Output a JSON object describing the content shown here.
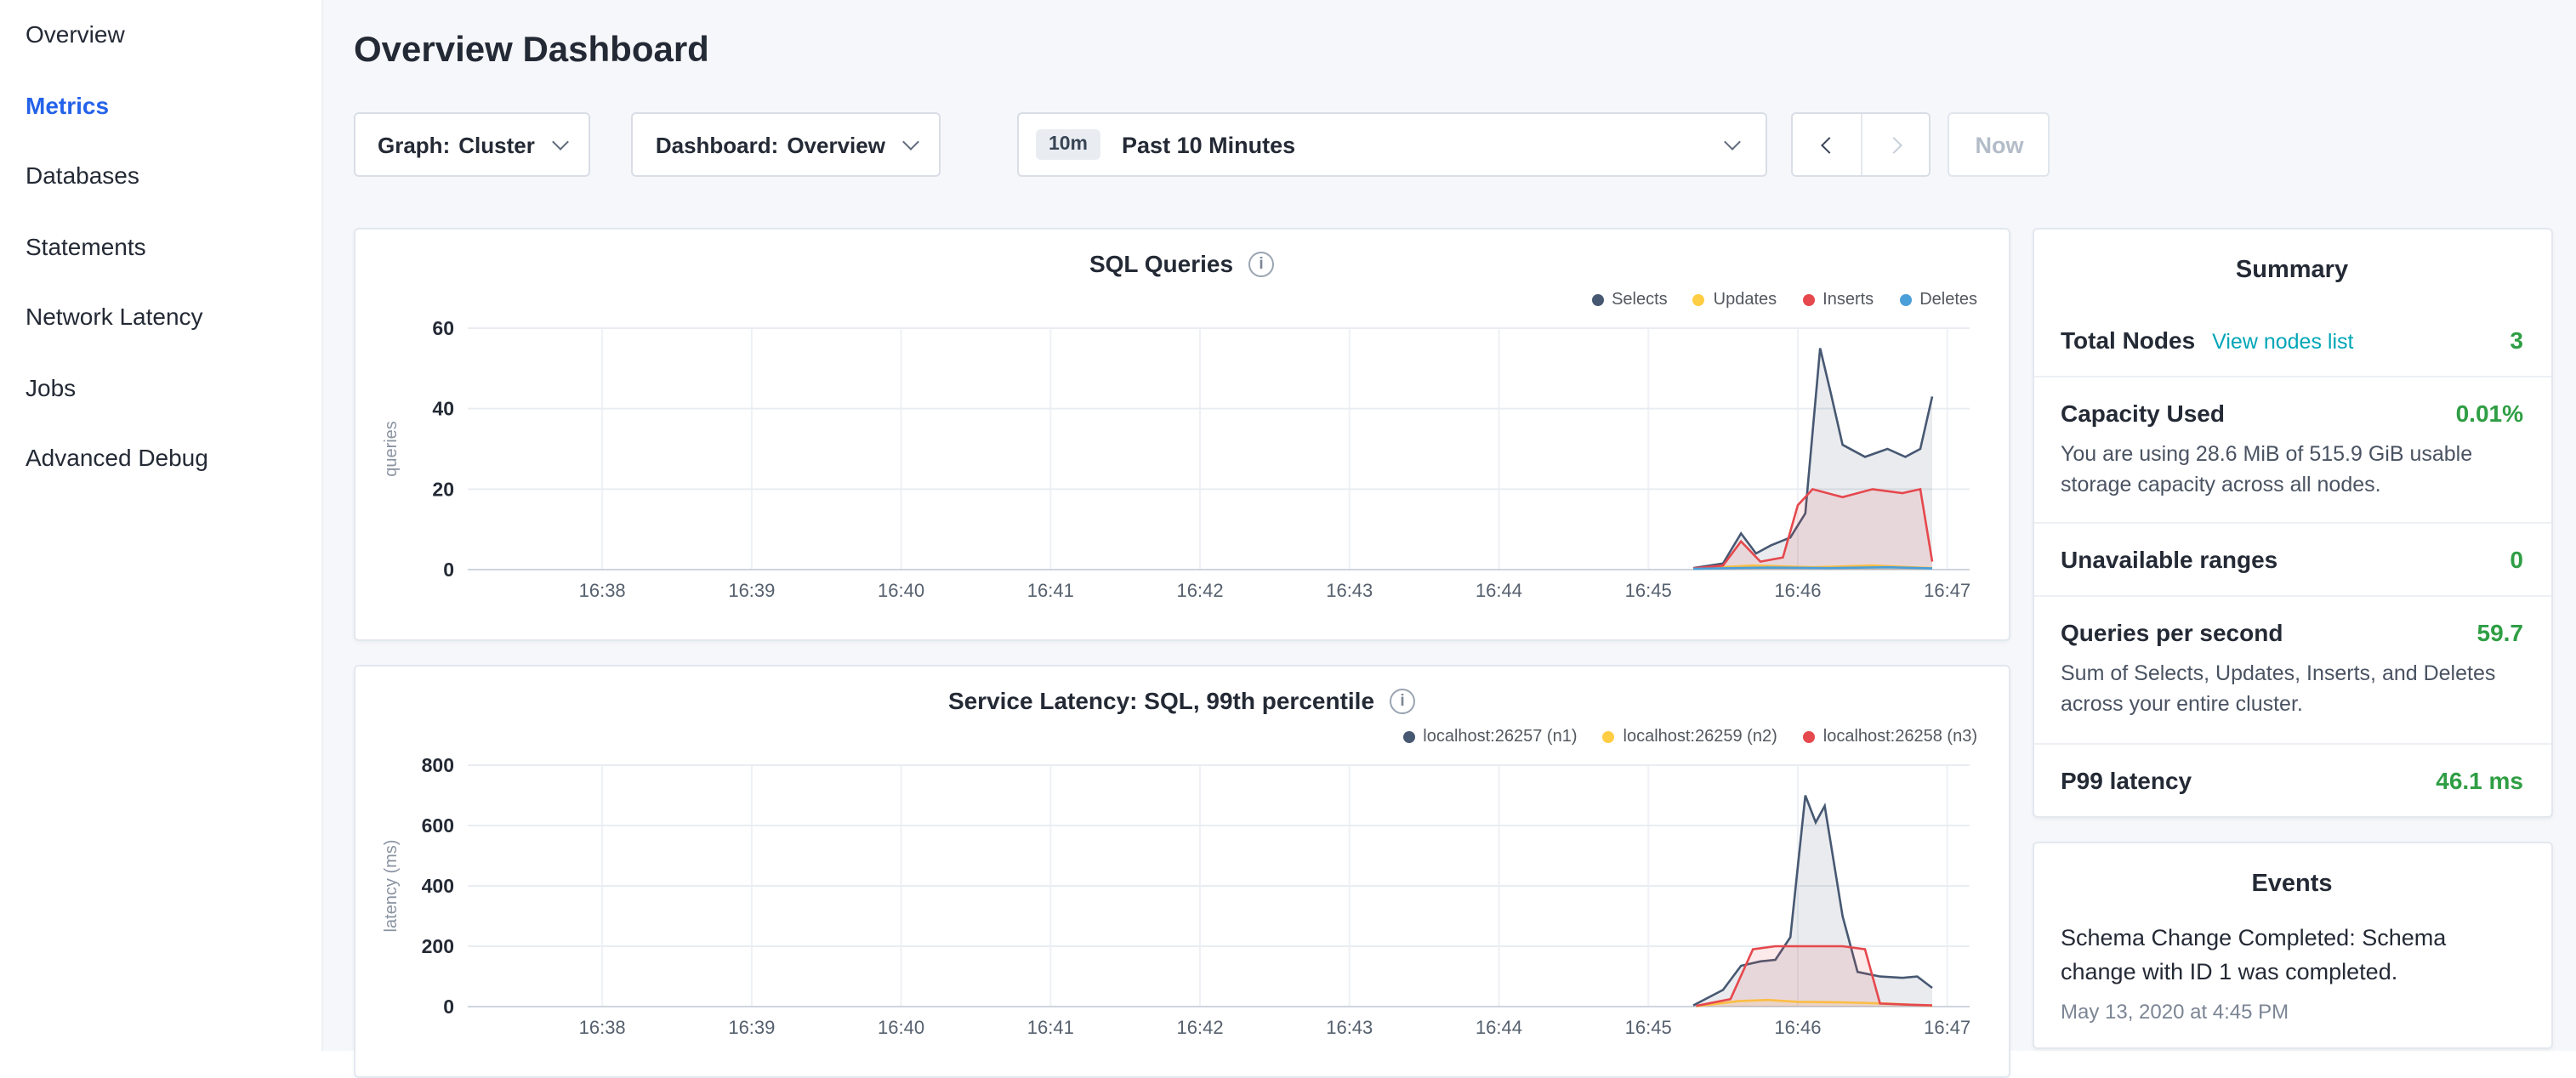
{
  "colors": {
    "accent_blue": "#2462ea",
    "value_green": "#2f9e44",
    "link_teal": "#00a6b8",
    "series_dark": "#475872",
    "series_yellow": "#ffcd44",
    "series_red": "#e5484d",
    "series_blue": "#4a9fd8"
  },
  "sidebar": {
    "items": [
      {
        "label": "Overview",
        "active": false
      },
      {
        "label": "Metrics",
        "active": true
      },
      {
        "label": "Databases",
        "active": false
      },
      {
        "label": "Statements",
        "active": false
      },
      {
        "label": "Network Latency",
        "active": false
      },
      {
        "label": "Jobs",
        "active": false
      },
      {
        "label": "Advanced Debug",
        "active": false
      }
    ]
  },
  "header": {
    "title": "Overview Dashboard",
    "graph_dropdown": {
      "label": "Graph:",
      "value": "Cluster"
    },
    "dashboard_dropdown": {
      "label": "Dashboard:",
      "value": "Overview"
    },
    "time": {
      "badge": "10m",
      "value": "Past 10 Minutes"
    },
    "now_label": "Now"
  },
  "chart_data": [
    {
      "type": "area",
      "title": "SQL Queries",
      "ylabel": "queries",
      "ymax": 60,
      "yticks": [
        0,
        20,
        40,
        60
      ],
      "xmin": 37.1,
      "xmax": 47.15,
      "grid": true,
      "legend_position": "top-right",
      "xticks": [
        {
          "v": 38,
          "label": "16:38"
        },
        {
          "v": 39,
          "label": "16:39"
        },
        {
          "v": 40,
          "label": "16:40"
        },
        {
          "v": 41,
          "label": "16:41"
        },
        {
          "v": 42,
          "label": "16:42"
        },
        {
          "v": 43,
          "label": "16:43"
        },
        {
          "v": 44,
          "label": "16:44"
        },
        {
          "v": 45,
          "label": "16:45"
        },
        {
          "v": 46,
          "label": "16:46"
        },
        {
          "v": 47,
          "label": "16:47"
        }
      ],
      "series": [
        {
          "name": "Selects",
          "color": "#475872",
          "points": [
            [
              45.3,
              0.4
            ],
            [
              45.5,
              1.5
            ],
            [
              45.62,
              9
            ],
            [
              45.72,
              4
            ],
            [
              45.82,
              6
            ],
            [
              45.95,
              8
            ],
            [
              46.05,
              14
            ],
            [
              46.15,
              55
            ],
            [
              46.22,
              44
            ],
            [
              46.3,
              31
            ],
            [
              46.45,
              28
            ],
            [
              46.6,
              30
            ],
            [
              46.72,
              28
            ],
            [
              46.82,
              30
            ],
            [
              46.9,
              43
            ]
          ]
        },
        {
          "name": "Updates",
          "color": "#ffcd44",
          "points": [
            [
              45.3,
              0.3
            ],
            [
              45.7,
              1
            ],
            [
              46.1,
              0.6
            ],
            [
              46.5,
              1
            ],
            [
              46.9,
              0.4
            ]
          ]
        },
        {
          "name": "Inserts",
          "color": "#e5484d",
          "points": [
            [
              45.3,
              0.3
            ],
            [
              45.5,
              1
            ],
            [
              45.62,
              7
            ],
            [
              45.75,
              2
            ],
            [
              45.9,
              3
            ],
            [
              46.0,
              16
            ],
            [
              46.1,
              20
            ],
            [
              46.3,
              18
            ],
            [
              46.5,
              20
            ],
            [
              46.7,
              19
            ],
            [
              46.82,
              20
            ],
            [
              46.9,
              2
            ]
          ]
        },
        {
          "name": "Deletes",
          "color": "#4a9fd8",
          "points": [
            [
              45.3,
              0.2
            ],
            [
              45.8,
              0.5
            ],
            [
              46.2,
              0.4
            ],
            [
              46.6,
              0.6
            ],
            [
              46.9,
              0.3
            ]
          ]
        }
      ]
    },
    {
      "type": "area",
      "title": "Service Latency: SQL, 99th percentile",
      "ylabel": "latency (ms)",
      "ymax": 800,
      "yticks": [
        0,
        200,
        400,
        600,
        800
      ],
      "xmin": 37.1,
      "xmax": 47.15,
      "grid": true,
      "legend_position": "top-right",
      "xticks": [
        {
          "v": 38,
          "label": "16:38"
        },
        {
          "v": 39,
          "label": "16:39"
        },
        {
          "v": 40,
          "label": "16:40"
        },
        {
          "v": 41,
          "label": "16:41"
        },
        {
          "v": 42,
          "label": "16:42"
        },
        {
          "v": 43,
          "label": "16:43"
        },
        {
          "v": 44,
          "label": "16:44"
        },
        {
          "v": 45,
          "label": "16:45"
        },
        {
          "v": 46,
          "label": "16:46"
        },
        {
          "v": 47,
          "label": "16:47"
        }
      ],
      "series": [
        {
          "name": "localhost:26257 (n1)",
          "color": "#475872",
          "points": [
            [
              45.3,
              4
            ],
            [
              45.5,
              55
            ],
            [
              45.62,
              135
            ],
            [
              45.75,
              150
            ],
            [
              45.85,
              155
            ],
            [
              45.95,
              230
            ],
            [
              46.05,
              700
            ],
            [
              46.12,
              610
            ],
            [
              46.18,
              665
            ],
            [
              46.3,
              300
            ],
            [
              46.4,
              115
            ],
            [
              46.55,
              100
            ],
            [
              46.7,
              95
            ],
            [
              46.8,
              100
            ],
            [
              46.9,
              62
            ]
          ]
        },
        {
          "name": "localhost:26259 (n2)",
          "color": "#ffcd44",
          "points": [
            [
              45.32,
              1
            ],
            [
              45.6,
              18
            ],
            [
              45.8,
              22
            ],
            [
              46.0,
              16
            ],
            [
              46.3,
              14
            ],
            [
              46.6,
              10
            ],
            [
              46.9,
              3
            ]
          ]
        },
        {
          "name": "localhost:26258 (n3)",
          "color": "#e5484d",
          "points": [
            [
              45.32,
              2
            ],
            [
              45.55,
              25
            ],
            [
              45.7,
              190
            ],
            [
              45.85,
              200
            ],
            [
              46.1,
              200
            ],
            [
              46.3,
              200
            ],
            [
              46.45,
              190
            ],
            [
              46.55,
              10
            ],
            [
              46.75,
              6
            ],
            [
              46.9,
              4
            ]
          ]
        }
      ]
    }
  ],
  "summary": {
    "title": "Summary",
    "rows": [
      {
        "label": "Total Nodes",
        "link": "View nodes list",
        "value": "3"
      },
      {
        "label": "Capacity Used",
        "value": "0.01%",
        "desc": "You are using 28.6 MiB of 515.9 GiB usable storage capacity across all nodes."
      },
      {
        "label": "Unavailable ranges",
        "value": "0"
      },
      {
        "label": "Queries per second",
        "value": "59.7",
        "desc": "Sum of Selects, Updates, Inserts, and Deletes across your entire cluster."
      },
      {
        "label": "P99 latency",
        "value": "46.1 ms"
      }
    ]
  },
  "events": {
    "title": "Events",
    "items": [
      {
        "text": "Schema Change Completed: Schema change with ID 1 was completed.",
        "timestamp": "May 13, 2020 at 4:45 PM"
      }
    ]
  }
}
